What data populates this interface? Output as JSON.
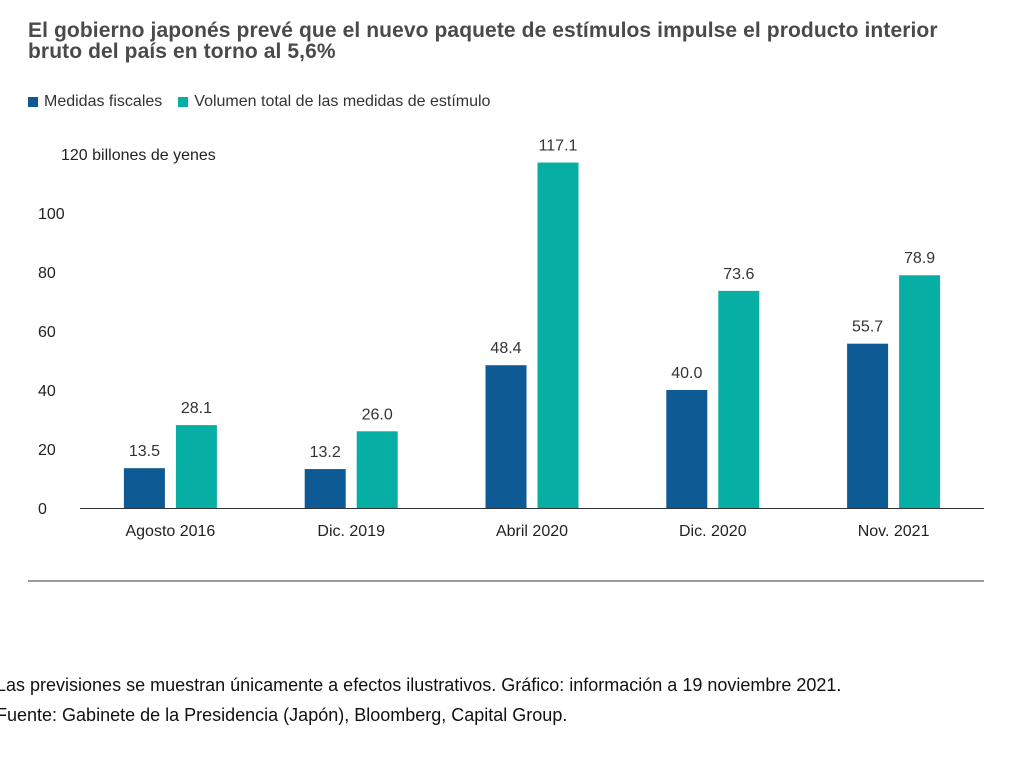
{
  "chart_data": {
    "type": "bar",
    "title": "El gobierno japonés prevé que el nuevo paquete de estímulos impulse el producto interior bruto del país en torno al 5,6%",
    "ylabel": "120 billones de yenes",
    "ylim": [
      0,
      120
    ],
    "yticks": [
      "0",
      "20",
      "40",
      "60",
      "80",
      "100"
    ],
    "categories": [
      "Agosto 2016",
      "Dic. 2019",
      "Abril 2020",
      "Dic. 2020",
      "Nov. 2021"
    ],
    "series": [
      {
        "name": "Medidas fiscales",
        "color": "#0e5a94",
        "values": [
          13.5,
          13.2,
          48.4,
          40.0,
          55.7
        ],
        "labels": [
          "13.5",
          "13.2",
          "48.4",
          "40.0",
          "55.7"
        ]
      },
      {
        "name": "Volumen total de las medidas de estímulo",
        "color": "#06aea4",
        "values": [
          28.1,
          26.0,
          117.1,
          73.6,
          78.9
        ],
        "labels": [
          "28.1",
          "26.0",
          "117.1",
          "73.6",
          "78.9"
        ]
      }
    ],
    "legend": "top-left"
  },
  "footnotes": {
    "line1": "Las previsiones se muestran únicamente a efectos ilustrativos. Gráfico: información a 19 noviembre 2021.",
    "line2": "Fuente: Gabinete de la Presidencia (Japón), Bloomberg, Capital Group."
  }
}
